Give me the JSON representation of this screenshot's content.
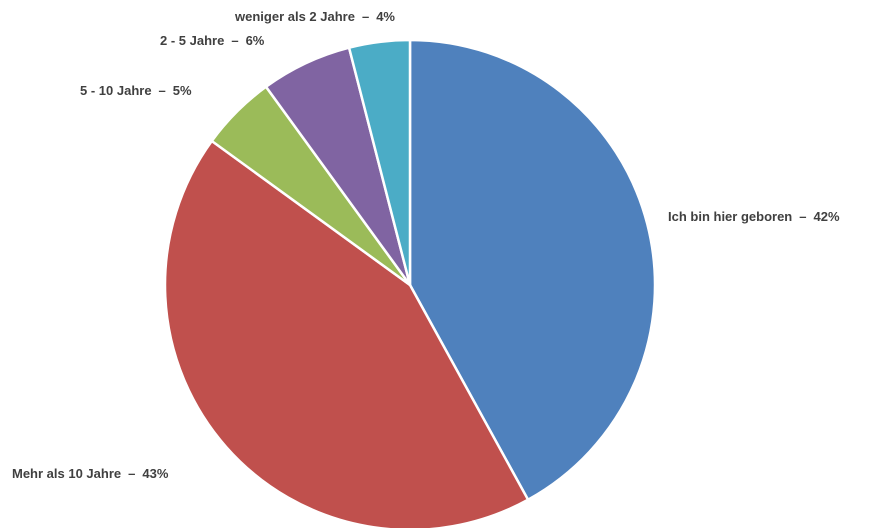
{
  "chart_data": {
    "type": "pie",
    "categories": [
      "Ich bin hier geboren",
      "Mehr als 10 Jahre",
      "5 - 10 Jahre",
      "2 - 5 Jahre",
      "weniger als 2 Jahre"
    ],
    "values": [
      42,
      43,
      5,
      6,
      4
    ],
    "value_labels": [
      "42%",
      "43%",
      "5%",
      "6%",
      "4%"
    ],
    "label_separator": "–",
    "colors": [
      "#4f81bd",
      "#c0504d",
      "#9bbb59",
      "#8064a2",
      "#4bacc6"
    ]
  }
}
